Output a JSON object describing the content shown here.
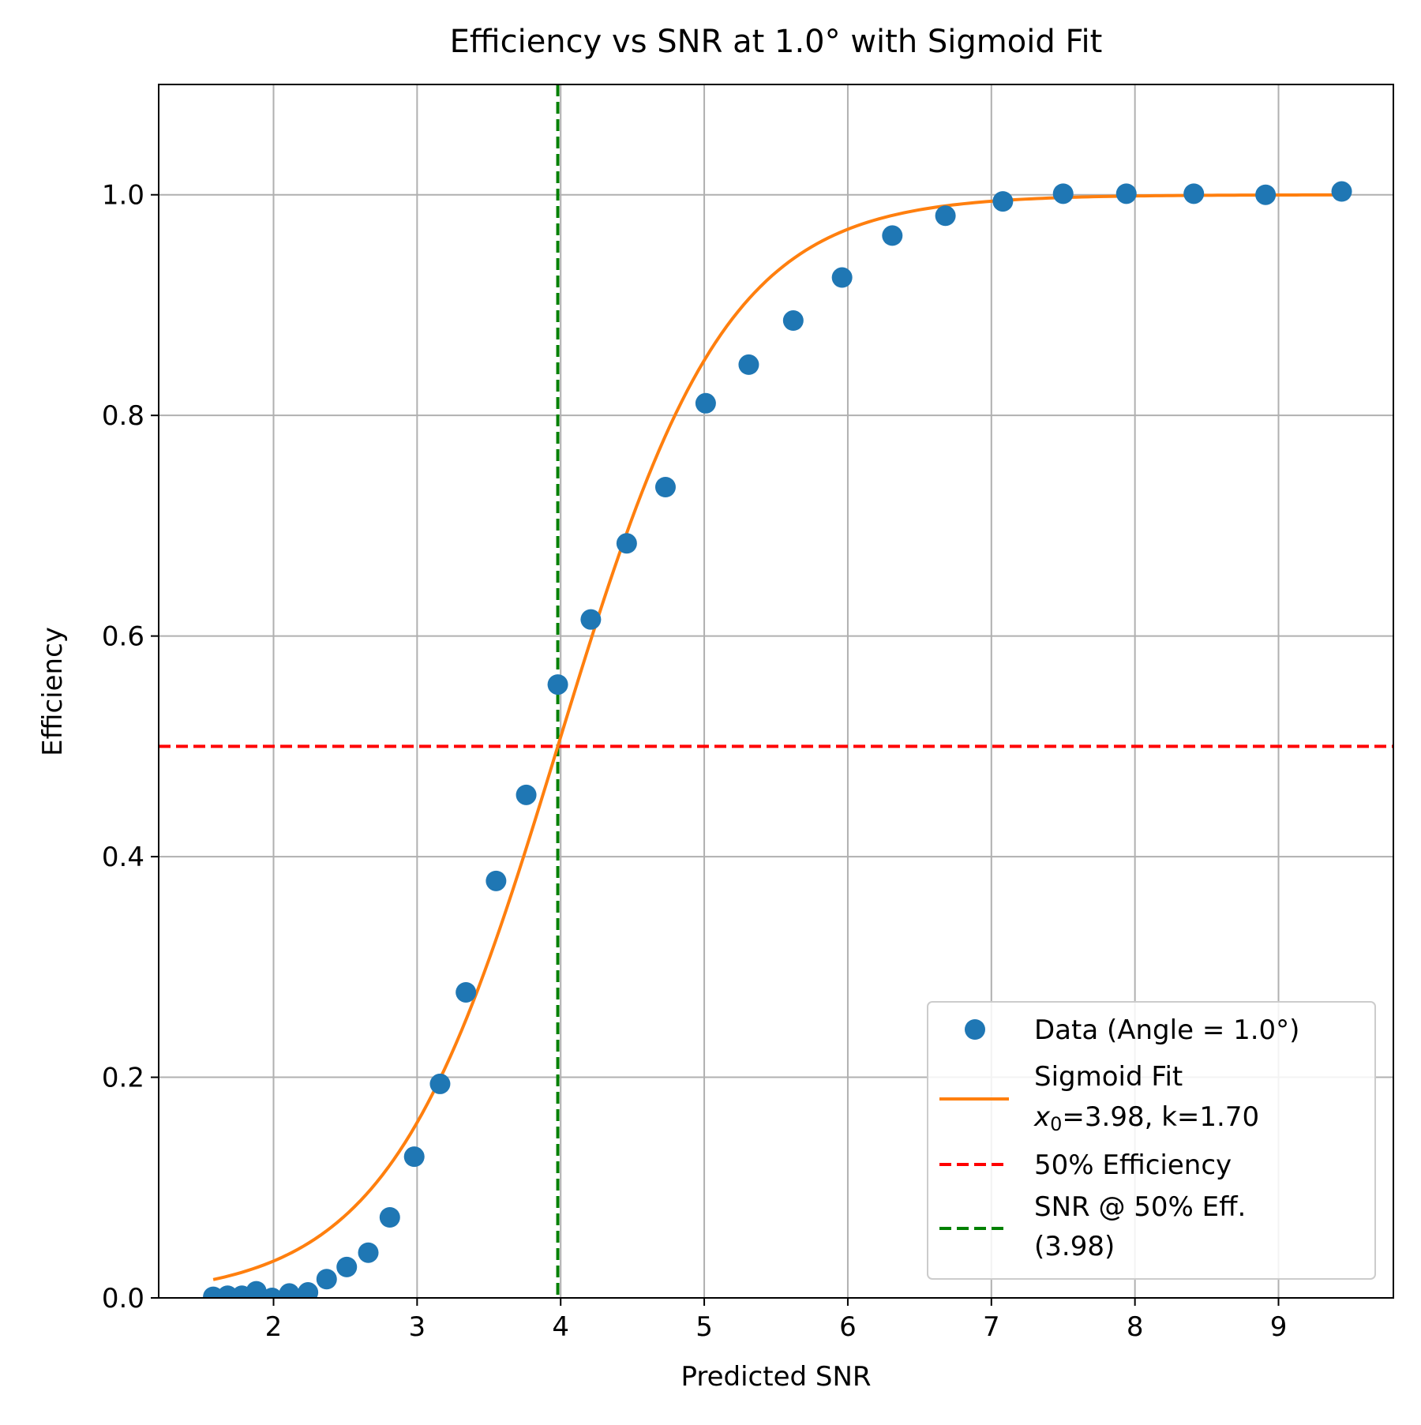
{
  "chart_data": {
    "type": "scatter",
    "title": "Efficiency vs SNR at 1.0° with Sigmoid Fit",
    "xlabel": "Predicted SNR",
    "ylabel": "Efficiency",
    "xlim": [
      1.2,
      9.8
    ],
    "ylim": [
      0.0,
      1.1
    ],
    "x_ticks": [
      2,
      3,
      4,
      5,
      6,
      7,
      8,
      9
    ],
    "x_tick_labels": [
      "2",
      "3",
      "4",
      "5",
      "6",
      "7",
      "8",
      "9"
    ],
    "y_ticks": [
      0.0,
      0.2,
      0.4,
      0.6,
      0.8,
      1.0
    ],
    "y_tick_labels": [
      "0.0",
      "0.2",
      "0.4",
      "0.6",
      "0.8",
      "1.0"
    ],
    "grid": true,
    "legend_position": "lower-right",
    "series": [
      {
        "name": "Data (Angle = 1.0°)",
        "kind": "scatter",
        "color": "#1f77b4",
        "x": [
          1.58,
          1.68,
          1.78,
          1.88,
          1.99,
          2.11,
          2.24,
          2.37,
          2.51,
          2.66,
          2.81,
          2.98,
          3.16,
          3.34,
          3.55,
          3.76,
          3.98,
          4.21,
          4.46,
          4.73,
          5.01,
          5.31,
          5.62,
          5.96,
          6.31,
          6.68,
          7.08,
          7.5,
          7.94,
          8.41,
          8.91,
          9.44
        ],
        "y": [
          0.001,
          0.002,
          0.002,
          0.006,
          0.0,
          0.004,
          0.005,
          0.017,
          0.028,
          0.041,
          0.073,
          0.128,
          0.194,
          0.277,
          0.378,
          0.456,
          0.556,
          0.615,
          0.684,
          0.735,
          0.811,
          0.846,
          0.886,
          0.925,
          0.963,
          0.981,
          0.994,
          1.001,
          1.001,
          1.001,
          1.0,
          1.003
        ]
      },
      {
        "name": "Sigmoid Fit",
        "name_line2_x0": "x",
        "name_line2_sub": "0",
        "name_line2_rest": "=3.98, k=1.70",
        "kind": "line",
        "color": "#ff7f0e",
        "x0": 3.98,
        "k": 1.7,
        "x_range": [
          1.58,
          9.44
        ]
      },
      {
        "name": "50% Efficiency",
        "kind": "hline",
        "color": "#ff0000",
        "y": 0.5
      },
      {
        "name": "SNR @ 50% Eff.",
        "name_line2": "(3.98)",
        "kind": "vline",
        "color": "#008000",
        "x": 3.98
      }
    ]
  }
}
